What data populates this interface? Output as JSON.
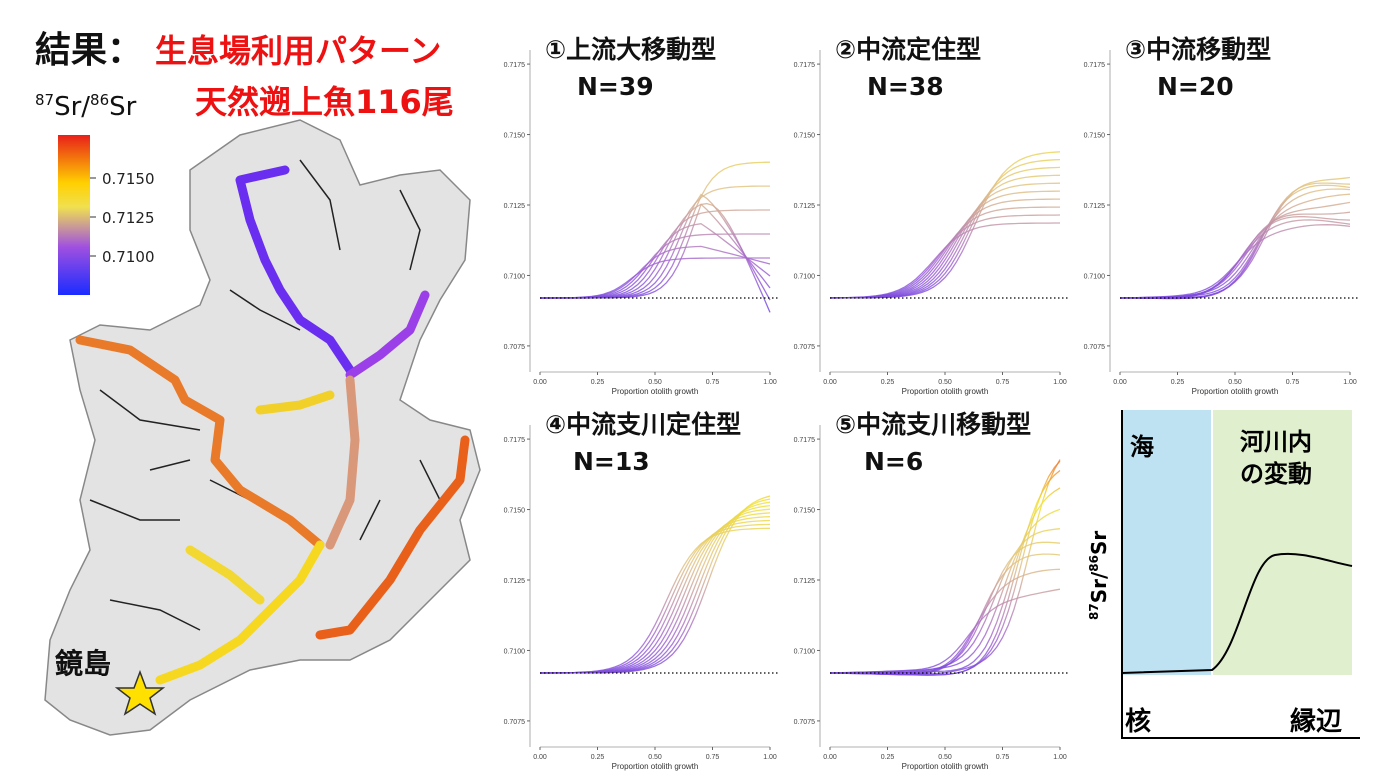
{
  "header": {
    "title": "結果：",
    "title_red": "生息場利用パターン",
    "subtitle": "天然遡上魚116尾"
  },
  "legend": {
    "label": {
      "sup1": "87",
      "base1": "Sr/",
      "sup2": "86",
      "base2": "Sr"
    },
    "ticks": [
      {
        "value": 0.715,
        "label": "0.7150"
      },
      0.7125,
      {
        "value": 0.71,
        "label": "0.7100"
      }
    ]
  },
  "map": {
    "place": "鏡島"
  },
  "panel_axes": {
    "ylim": [
      0.707,
      0.718
    ],
    "yticks": [
      0.7075,
      {
        "value": 0.71,
        "label": "0.7100"
      },
      0.7125,
      {
        "value": 0.715,
        "label": "0.7150"
      },
      0.7175
    ],
    "xticks": [
      {
        "value": 0,
        "label": "0.00"
      },
      {
        "value": 0.25,
        "label": "0.25"
      },
      {
        "value": 0.5,
        "label": "0.50"
      },
      {
        "value": 0.75,
        "label": "0.75"
      },
      {
        "value": 1,
        "label": "1.00"
      }
    ],
    "xlabel": "Proportion otolith growth"
  },
  "panels": [
    {
      "title": "①上流大移動型",
      "n": "N=39"
    },
    {
      "title": "②中流定住型",
      "n": "N=38"
    },
    {
      "title": "③中流移動型",
      "n": "N=20"
    },
    {
      "title": "④中流支川定住型",
      "n": "N=13"
    },
    {
      "title": "⑤中流支川移動型",
      "n": "N=6"
    }
  ],
  "schematic": {
    "sea": "海",
    "river": [
      "河川内",
      "の変動"
    ],
    "ylabel": {
      "sup1": "87",
      "base1": "Sr/",
      "sup2": "86",
      "base2": "Sr"
    },
    "core": "核",
    "edge": "縁辺"
  }
}
